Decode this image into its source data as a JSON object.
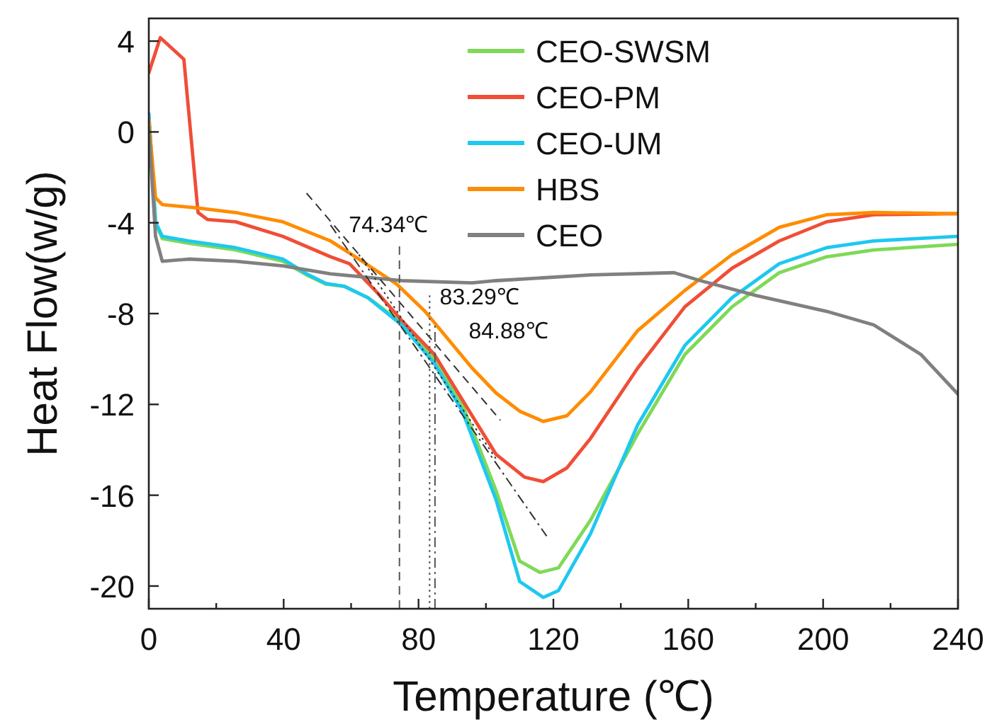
{
  "chart_data": {
    "type": "line",
    "xlabel": "Temperature (℃)",
    "ylabel": "Heat Flow(w/g)",
    "xlim": [
      0,
      240
    ],
    "ylim": [
      -21,
      5
    ],
    "xticks": [
      0,
      {
        "value": 20,
        "label": null
      },
      40,
      {
        "value": 60,
        "label": null
      },
      80,
      {
        "value": 100,
        "label": null
      },
      120,
      {
        "value": 140,
        "label": null
      },
      160,
      {
        "value": 180,
        "label": null
      },
      200,
      {
        "value": 220,
        "label": null
      },
      240
    ],
    "yticks": [
      -20,
      -16,
      -12,
      -8,
      -4,
      0,
      4
    ],
    "grid": false,
    "legend": "top right",
    "marker": "none",
    "series": [
      {
        "name": "CEO-SWSM",
        "color": "#7ed957",
        "x": [
          0,
          2,
          4,
          11.8,
          25.8,
          39.8,
          46.8,
          52.5,
          58,
          65,
          75,
          84.7,
          93,
          103,
          110,
          116,
          121.5,
          131,
          145,
          159,
          173,
          187,
          201,
          215,
          240
        ],
        "values": [
          0.8,
          -4.0,
          -4.7,
          -4.9,
          -5.2,
          -5.7,
          -6.3,
          -6.7,
          -6.8,
          -7.3,
          -8.4,
          -10.0,
          -12.0,
          -15.8,
          -18.9,
          -19.4,
          -19.2,
          -17.1,
          -13.3,
          -9.8,
          -7.7,
          -6.2,
          -5.5,
          -5.2,
          -4.95
        ]
      },
      {
        "name": "CEO-PM",
        "color": "#f04e37",
        "x": [
          0,
          3.4,
          10.4,
          14.6,
          17.4,
          25.8,
          39.8,
          53.9,
          59.5,
          67.9,
          75,
          84.7,
          95.9,
          103,
          111.4,
          117,
          124,
          131,
          145,
          159,
          173,
          187,
          201,
          215,
          240
        ],
        "values": [
          2.6,
          4.15,
          3.2,
          -3.55,
          -3.86,
          -3.96,
          -4.6,
          -5.5,
          -5.8,
          -7.1,
          -8.3,
          -9.8,
          -12.5,
          -14.2,
          -15.2,
          -15.4,
          -14.8,
          -13.5,
          -10.4,
          -7.7,
          -6.0,
          -4.8,
          -3.96,
          -3.65,
          -3.6
        ]
      },
      {
        "name": "CEO-UM",
        "color": "#1ec8f0",
        "x": [
          0,
          2,
          4,
          11.8,
          25.8,
          39.8,
          46.8,
          52.5,
          58,
          65,
          75,
          84.7,
          93,
          103,
          110,
          117,
          121.5,
          131,
          145,
          159,
          173,
          187,
          201,
          215,
          240
        ],
        "values": [
          0.8,
          -3.96,
          -4.6,
          -4.8,
          -5.1,
          -5.6,
          -6.25,
          -6.67,
          -6.8,
          -7.3,
          -8.5,
          -10.2,
          -12.3,
          -16.2,
          -19.8,
          -20.5,
          -20.2,
          -17.7,
          -12.9,
          -9.4,
          -7.3,
          -5.8,
          -5.1,
          -4.8,
          -4.6
        ]
      },
      {
        "name": "HBS",
        "color": "#ff8c00",
        "x": [
          0,
          2,
          4,
          14.6,
          25.8,
          39.8,
          53.9,
          62.3,
          73.5,
          81.9,
          95.9,
          103,
          110,
          117,
          124,
          131,
          145,
          159,
          173,
          187,
          201,
          215,
          240
        ],
        "values": [
          0.5,
          -2.9,
          -3.2,
          -3.35,
          -3.55,
          -3.96,
          -4.8,
          -5.6,
          -6.7,
          -7.9,
          -10.4,
          -11.5,
          -12.3,
          -12.75,
          -12.5,
          -11.45,
          -8.75,
          -6.98,
          -5.4,
          -4.2,
          -3.65,
          -3.55,
          -3.6
        ]
      },
      {
        "name": "CEO",
        "color": "#808080",
        "x": [
          0,
          2,
          4,
          11.8,
          25.8,
          39.8,
          53.9,
          75,
          95.9,
          103,
          131,
          155.8,
          163.6,
          180,
          201,
          215,
          229,
          240
        ],
        "values": [
          0.2,
          -4.6,
          -5.7,
          -5.6,
          -5.7,
          -5.9,
          -6.25,
          -6.55,
          -6.65,
          -6.55,
          -6.3,
          -6.2,
          -6.55,
          -7.2,
          -7.9,
          -8.5,
          -9.8,
          -11.55
        ]
      },
      {
        "color": "#333333",
        "line_style": "dashed",
        "x": [
          46.8,
          104.3
        ],
        "values": [
          -2.7,
          -12.7
        ]
      },
      {
        "color": "#333333",
        "line_style": "dashdot",
        "x": [
          53.9,
          118
        ],
        "values": [
          -4.1,
          -17.8
        ]
      },
      {
        "color": "#333333",
        "line_style": "dotted",
        "x": [
          62.3,
          103
        ],
        "values": [
          -5.4,
          -14.4
        ]
      }
    ],
    "ref_lines": [
      {
        "axis": "x",
        "value": 74.34,
        "label": "74.34℃",
        "color": "#555555",
        "line_style": "dashed"
      },
      {
        "axis": "x",
        "value": 83.29,
        "label": "83.29℃",
        "color": "#555555",
        "line_style": "dotted"
      },
      {
        "axis": "x",
        "value": 84.88,
        "label": "84.88℃",
        "color": "#555555",
        "line_style": "dashdot"
      }
    ]
  }
}
